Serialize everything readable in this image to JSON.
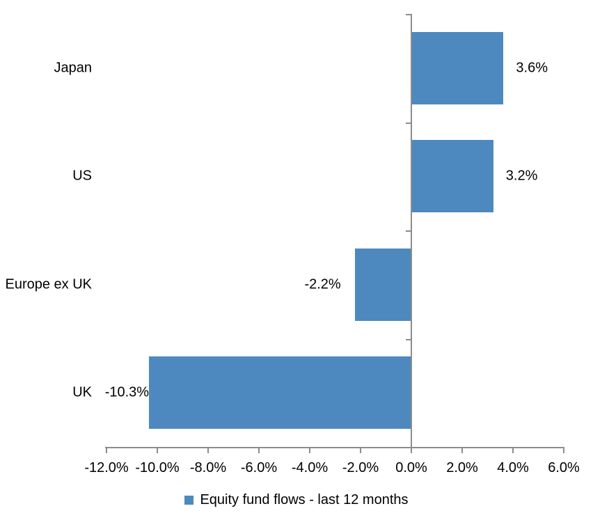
{
  "chart_data": {
    "type": "bar",
    "orientation": "horizontal",
    "title": "",
    "categories": [
      "Japan",
      "US",
      "Europe ex UK",
      "UK"
    ],
    "series": [
      {
        "name": "Equity fund flows - last 12 months",
        "values": [
          3.6,
          3.2,
          -2.2,
          -10.3
        ]
      }
    ],
    "data_labels": [
      "3.6%",
      "3.2%",
      "-2.2%",
      "-10.3%"
    ],
    "xlim": [
      -12,
      6
    ],
    "x_tick_step": 2,
    "x_ticks": [
      {
        "value": -12,
        "label": "-12.0%"
      },
      {
        "value": -10,
        "label": "-10.0%"
      },
      {
        "value": -8,
        "label": "-8.0%"
      },
      {
        "value": -6,
        "label": "-6.0%"
      },
      {
        "value": -4,
        "label": "-4.0%"
      },
      {
        "value": -2,
        "label": "-2.0%"
      },
      {
        "value": 0,
        "label": "0.0%"
      },
      {
        "value": 2,
        "label": "2.0%"
      },
      {
        "value": 4,
        "label": "4.0%"
      },
      {
        "value": 6,
        "label": "6.0%"
      }
    ],
    "grid": false,
    "legend": {
      "position": "bottom",
      "label": "Equity fund flows - last 12 months"
    },
    "colors": {
      "bar": "#4d89be",
      "axis": "#8c8c8c",
      "text": "#000000"
    }
  }
}
